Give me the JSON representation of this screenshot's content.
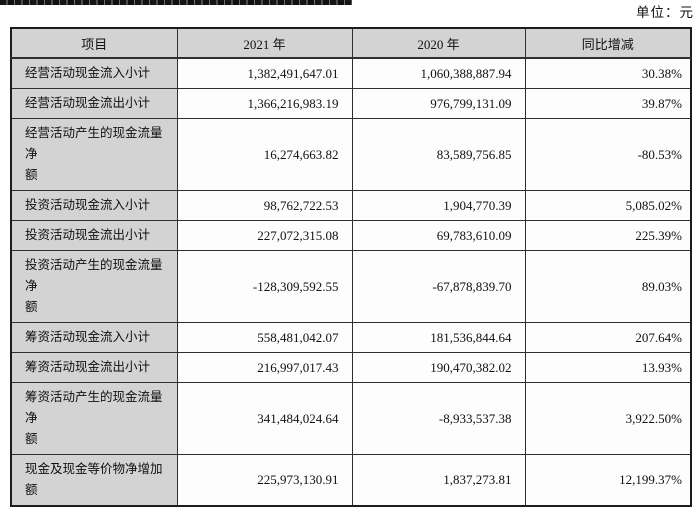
{
  "unit_label": "单位：元",
  "table": {
    "columns": [
      "项目",
      "2021 年",
      "2020 年",
      "同比增减"
    ],
    "rows": [
      {
        "label": "经营活动现金流入小计",
        "y2021": "1,382,491,647.01",
        "y2020": "1,060,388,887.94",
        "change": "30.38%"
      },
      {
        "label": "经营活动现金流出小计",
        "y2021": "1,366,216,983.19",
        "y2020": "976,799,131.09",
        "change": "39.87%"
      },
      {
        "label": "经营活动产生的现金流量净\n额",
        "y2021": "16,274,663.82",
        "y2020": "83,589,756.85",
        "change": "-80.53%"
      },
      {
        "label": "投资活动现金流入小计",
        "y2021": "98,762,722.53",
        "y2020": "1,904,770.39",
        "change": "5,085.02%"
      },
      {
        "label": "投资活动现金流出小计",
        "y2021": "227,072,315.08",
        "y2020": "69,783,610.09",
        "change": "225.39%"
      },
      {
        "label": "投资活动产生的现金流量净\n额",
        "y2021": "-128,309,592.55",
        "y2020": "-67,878,839.70",
        "change": "89.03%"
      },
      {
        "label": "筹资活动现金流入小计",
        "y2021": "558,481,042.07",
        "y2020": "181,536,844.64",
        "change": "207.64%"
      },
      {
        "label": "筹资活动现金流出小计",
        "y2021": "216,997,017.43",
        "y2020": "190,470,382.02",
        "change": "13.93%"
      },
      {
        "label": "筹资活动产生的现金流量净\n额",
        "y2021": "341,484,024.64",
        "y2020": "-8,933,537.38",
        "change": "3,922.50%"
      },
      {
        "label": "现金及现金等价物净增加额",
        "y2021": "225,973,130.91",
        "y2020": "1,837,273.81",
        "change": "12,199.37%"
      }
    ]
  },
  "colors": {
    "header_bg": "#d3d3d3",
    "cell_bg": "#fdfdfd",
    "border": "#2f2f2f"
  }
}
